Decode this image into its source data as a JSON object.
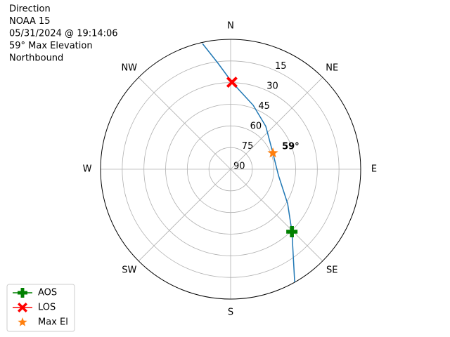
{
  "chart_data": {
    "type": "polar",
    "title_lines": [
      "Direction",
      "NOAA 15",
      "05/31/2024 @ 19:14:06",
      "59° Max Elevation",
      "Northbound"
    ],
    "rlim": [
      90,
      0
    ],
    "rticks": [
      15,
      30,
      45,
      60,
      75,
      90
    ],
    "thetaticks": [
      {
        "value": 0,
        "label": "N"
      },
      {
        "value": 45,
        "label": "NE"
      },
      {
        "value": 90,
        "label": "E"
      },
      {
        "value": 135,
        "label": "SE"
      },
      {
        "value": 180,
        "label": "S"
      },
      {
        "value": 225,
        "label": "SW"
      },
      {
        "value": 270,
        "label": "W"
      },
      {
        "value": 315,
        "label": "NW"
      }
    ],
    "grid": true,
    "track": {
      "color": "#1f77b4",
      "azimuth": [
        150.5,
        135.6,
        121.2,
        97.5,
        69,
        39.3,
        19.4,
        0.9,
        353.2,
        347.4
      ],
      "elevation": [
        0,
        29.4,
        43.9,
        56.6,
        58.7,
        51.6,
        43,
        29.7,
        16,
        0.8
      ]
    },
    "series": [
      {
        "name": "AOS",
        "color": "#008000",
        "marker": "plus",
        "azimuth": 135.6,
        "elevation": 29.4
      },
      {
        "name": "LOS",
        "color": "#ff0000",
        "marker": "x",
        "azimuth": 0.9,
        "elevation": 29.7
      },
      {
        "name": "Max El",
        "color": "#ff7f0e",
        "marker": "star",
        "azimuth": 69,
        "elevation": 58.7
      }
    ],
    "annotation": "59°",
    "legend": "lower-left"
  }
}
